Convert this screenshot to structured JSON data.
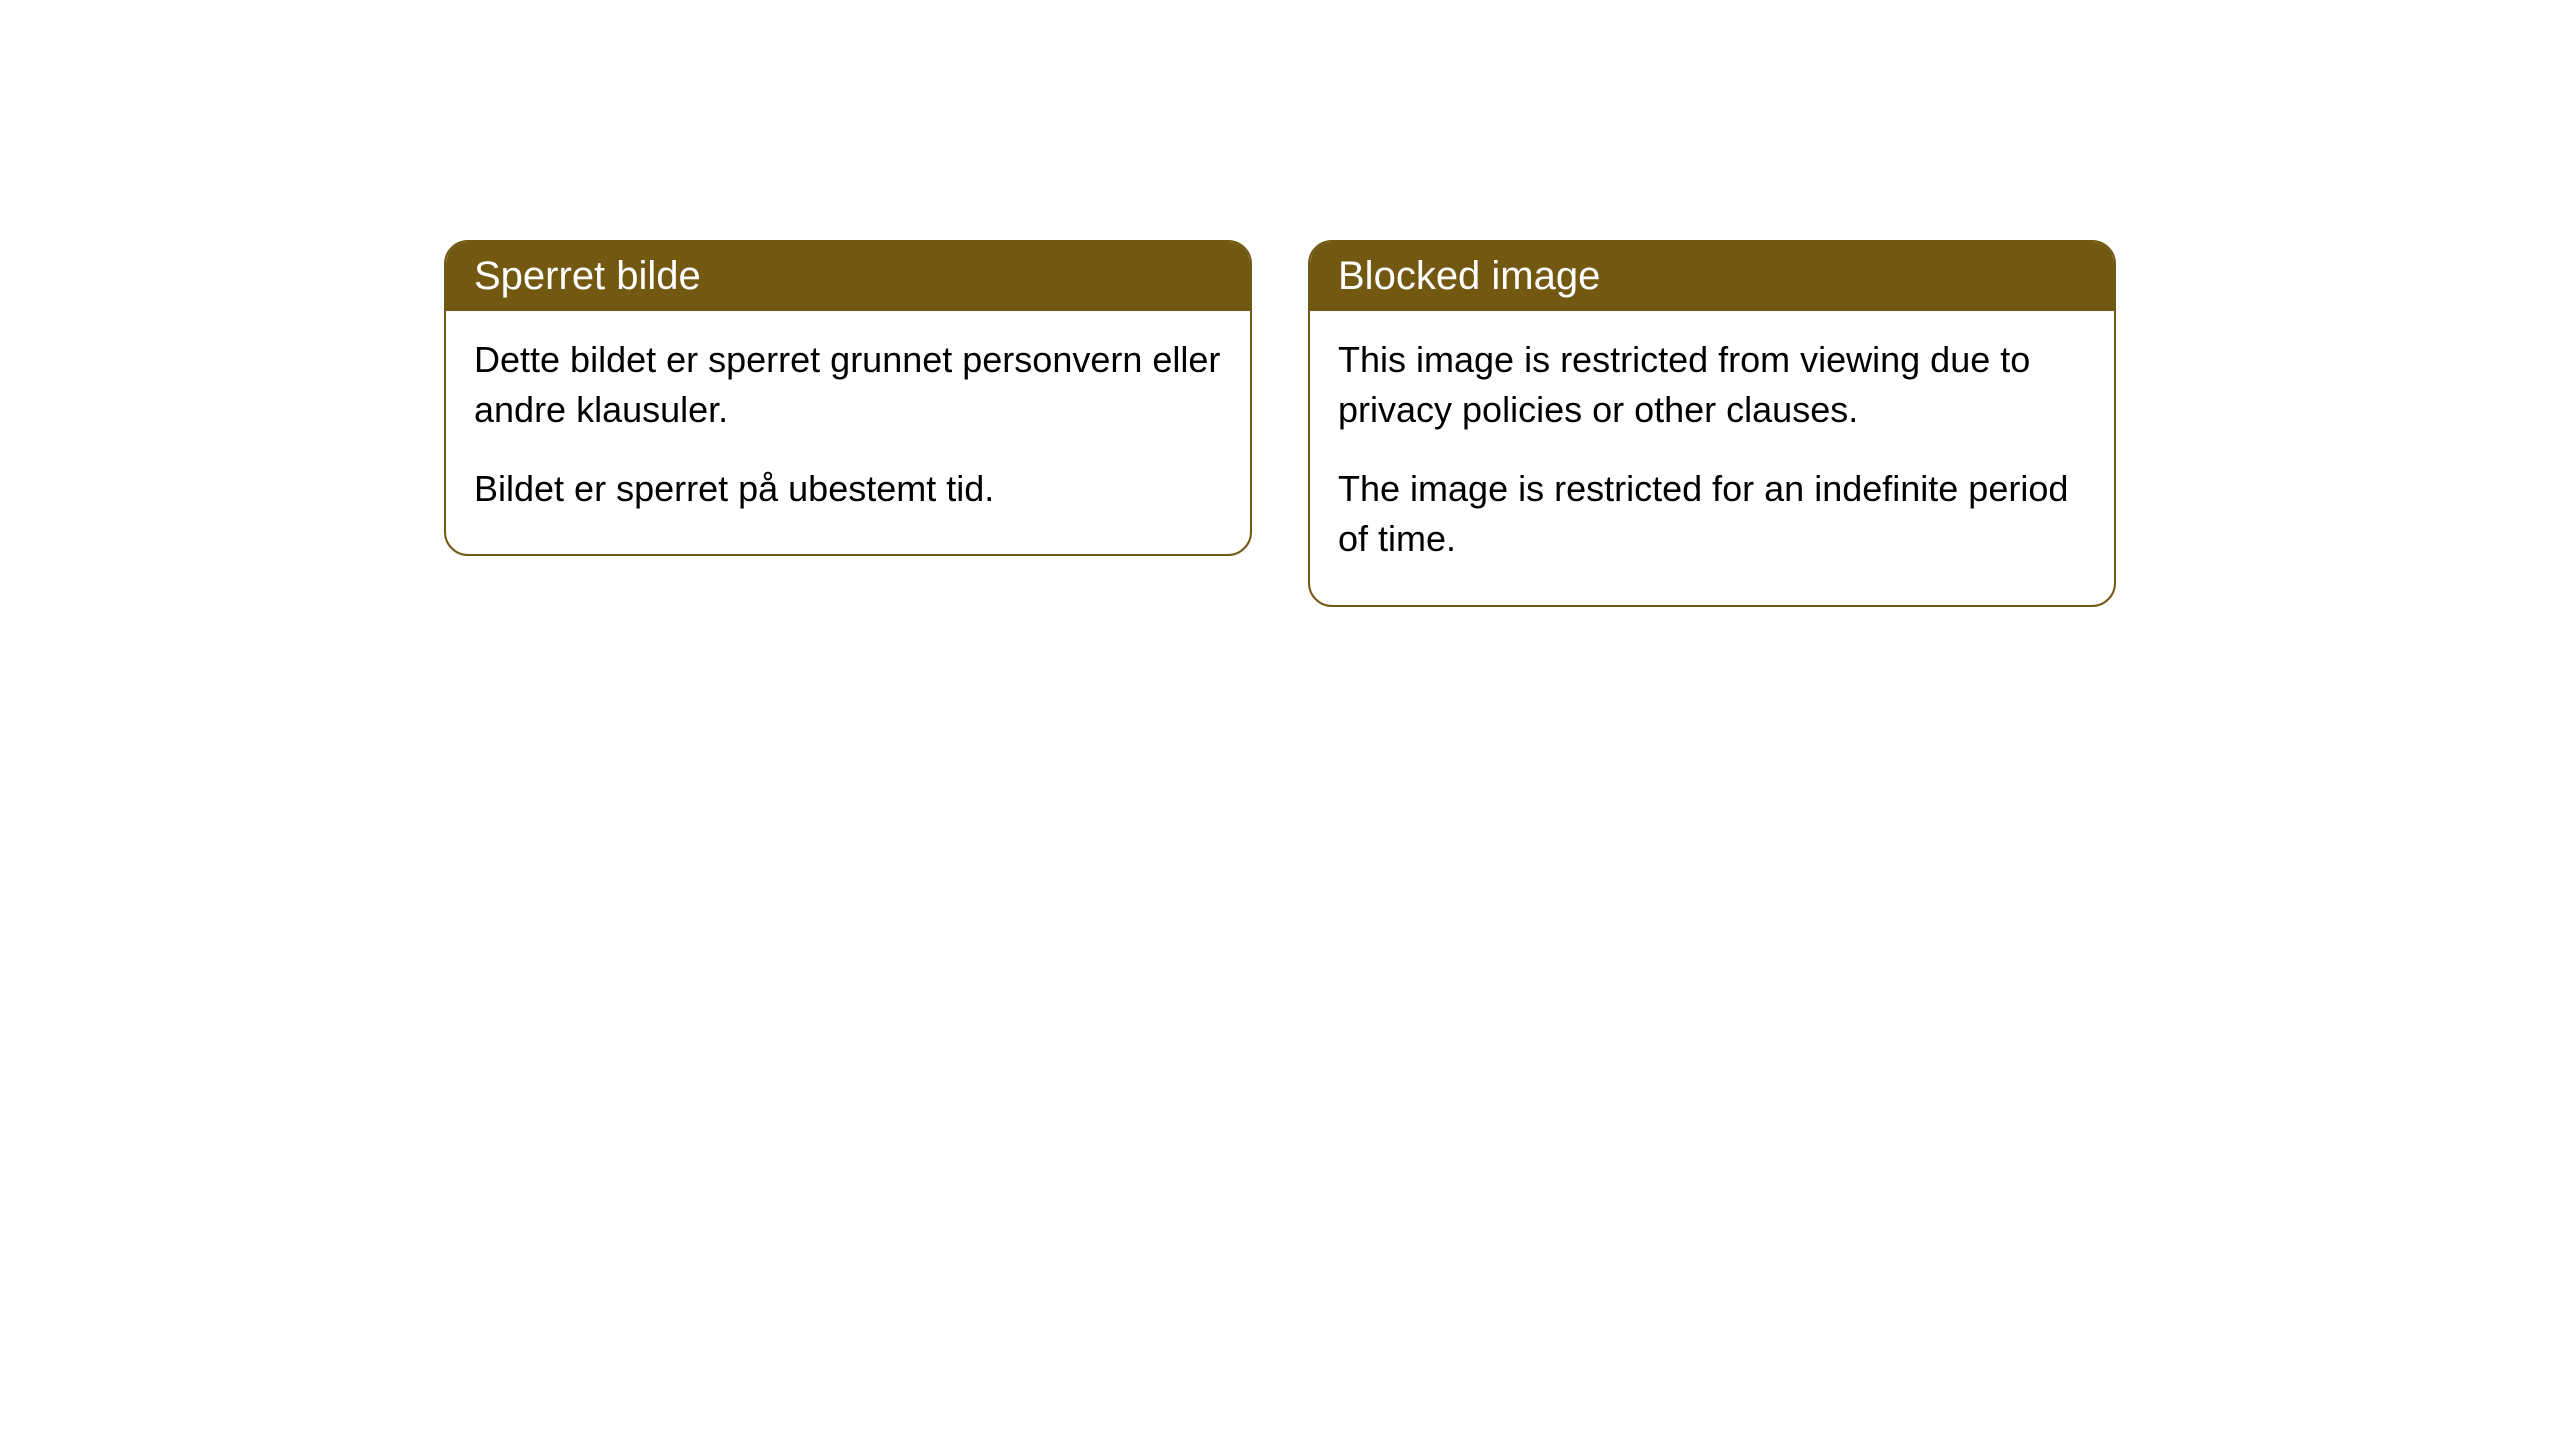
{
  "style": {
    "header_bg_color": "#735812",
    "header_text_color": "#ffffff",
    "border_color": "#735812",
    "body_bg_color": "#ffffff",
    "body_text_color": "#000000",
    "border_radius": 24,
    "header_fontsize": 40,
    "body_fontsize": 36
  },
  "cards": [
    {
      "title": "Sperret bilde",
      "paragraphs": [
        "Dette bildet er sperret grunnet personvern eller andre klausuler.",
        "Bildet er sperret på ubestemt tid."
      ]
    },
    {
      "title": "Blocked image",
      "paragraphs": [
        "This image is restricted from viewing due to privacy policies or other clauses.",
        "The image is restricted for an indefinite period of time."
      ]
    }
  ]
}
